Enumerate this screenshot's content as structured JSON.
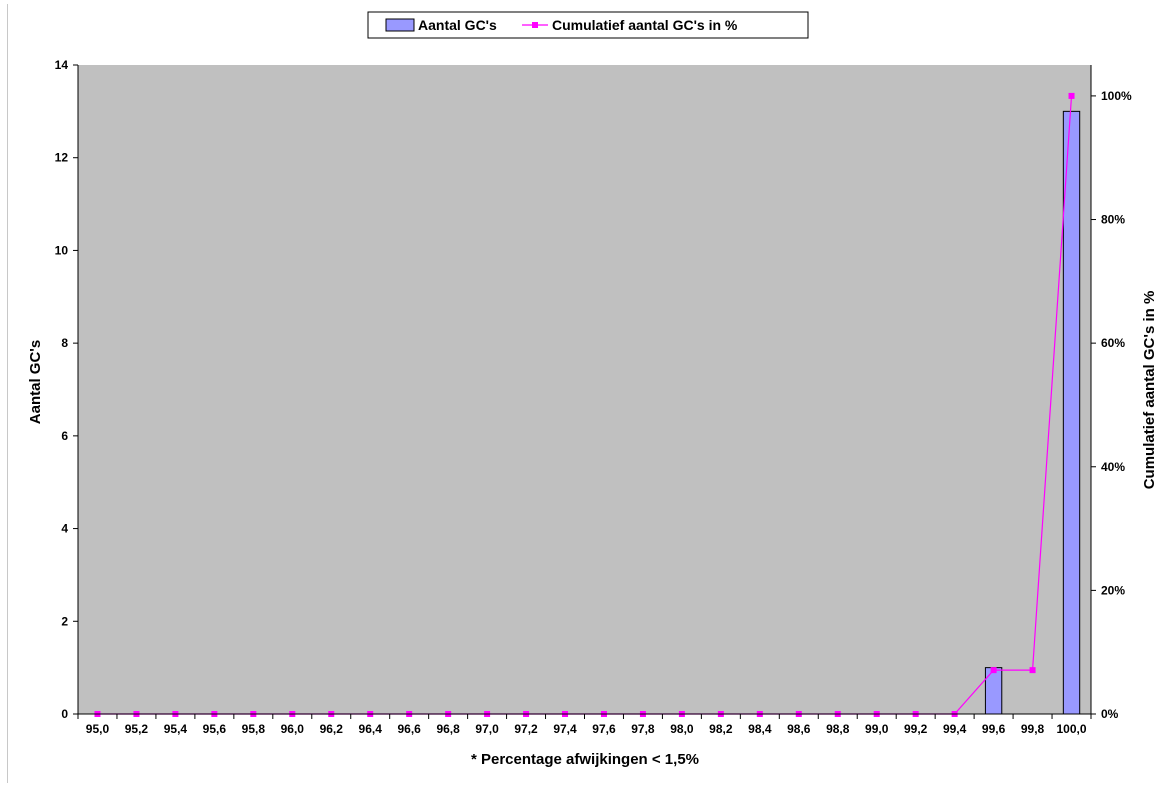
{
  "chart_data": {
    "type": "bar",
    "categories": [
      "95,0",
      "95,2",
      "95,4",
      "95,6",
      "95,8",
      "96,0",
      "96,2",
      "96,4",
      "96,6",
      "96,8",
      "97,0",
      "97,2",
      "97,4",
      "97,6",
      "97,8",
      "98,0",
      "98,2",
      "98,4",
      "98,6",
      "98,8",
      "99,0",
      "99,2",
      "99,4",
      "99,6",
      "99,8",
      "100,0"
    ],
    "series": [
      {
        "name": "Aantal GC's",
        "kind": "bar",
        "axis": "left",
        "color": "#9999ff",
        "values": [
          0,
          0,
          0,
          0,
          0,
          0,
          0,
          0,
          0,
          0,
          0,
          0,
          0,
          0,
          0,
          0,
          0,
          0,
          0,
          0,
          0,
          0,
          0,
          1,
          0,
          13
        ]
      },
      {
        "name": "Cumulatief aantal GC's in %",
        "kind": "line",
        "axis": "right",
        "color": "#ff00ff",
        "values": [
          0,
          0,
          0,
          0,
          0,
          0,
          0,
          0,
          0,
          0,
          0,
          0,
          0,
          0,
          0,
          0,
          0,
          0,
          0,
          0,
          0,
          0,
          0,
          7.1,
          7.1,
          100
        ]
      }
    ],
    "xlabel": "* Percentage afwijkingen < 1,5%",
    "ylabel": "Aantal GC's",
    "y2label": "Cumulatief aantal GC's in %",
    "ylim": [
      0,
      14
    ],
    "yticks": [
      0,
      2,
      4,
      6,
      8,
      10,
      12,
      14
    ],
    "y2lim": [
      0,
      105
    ],
    "y2ticks": [
      "0%",
      "20%",
      "40%",
      "60%",
      "80%",
      "100%"
    ],
    "y2tick_values": [
      0,
      20,
      40,
      60,
      80,
      100
    ],
    "plot_background": "#c0c0c0",
    "grid": false,
    "legend_position": "top-center"
  }
}
